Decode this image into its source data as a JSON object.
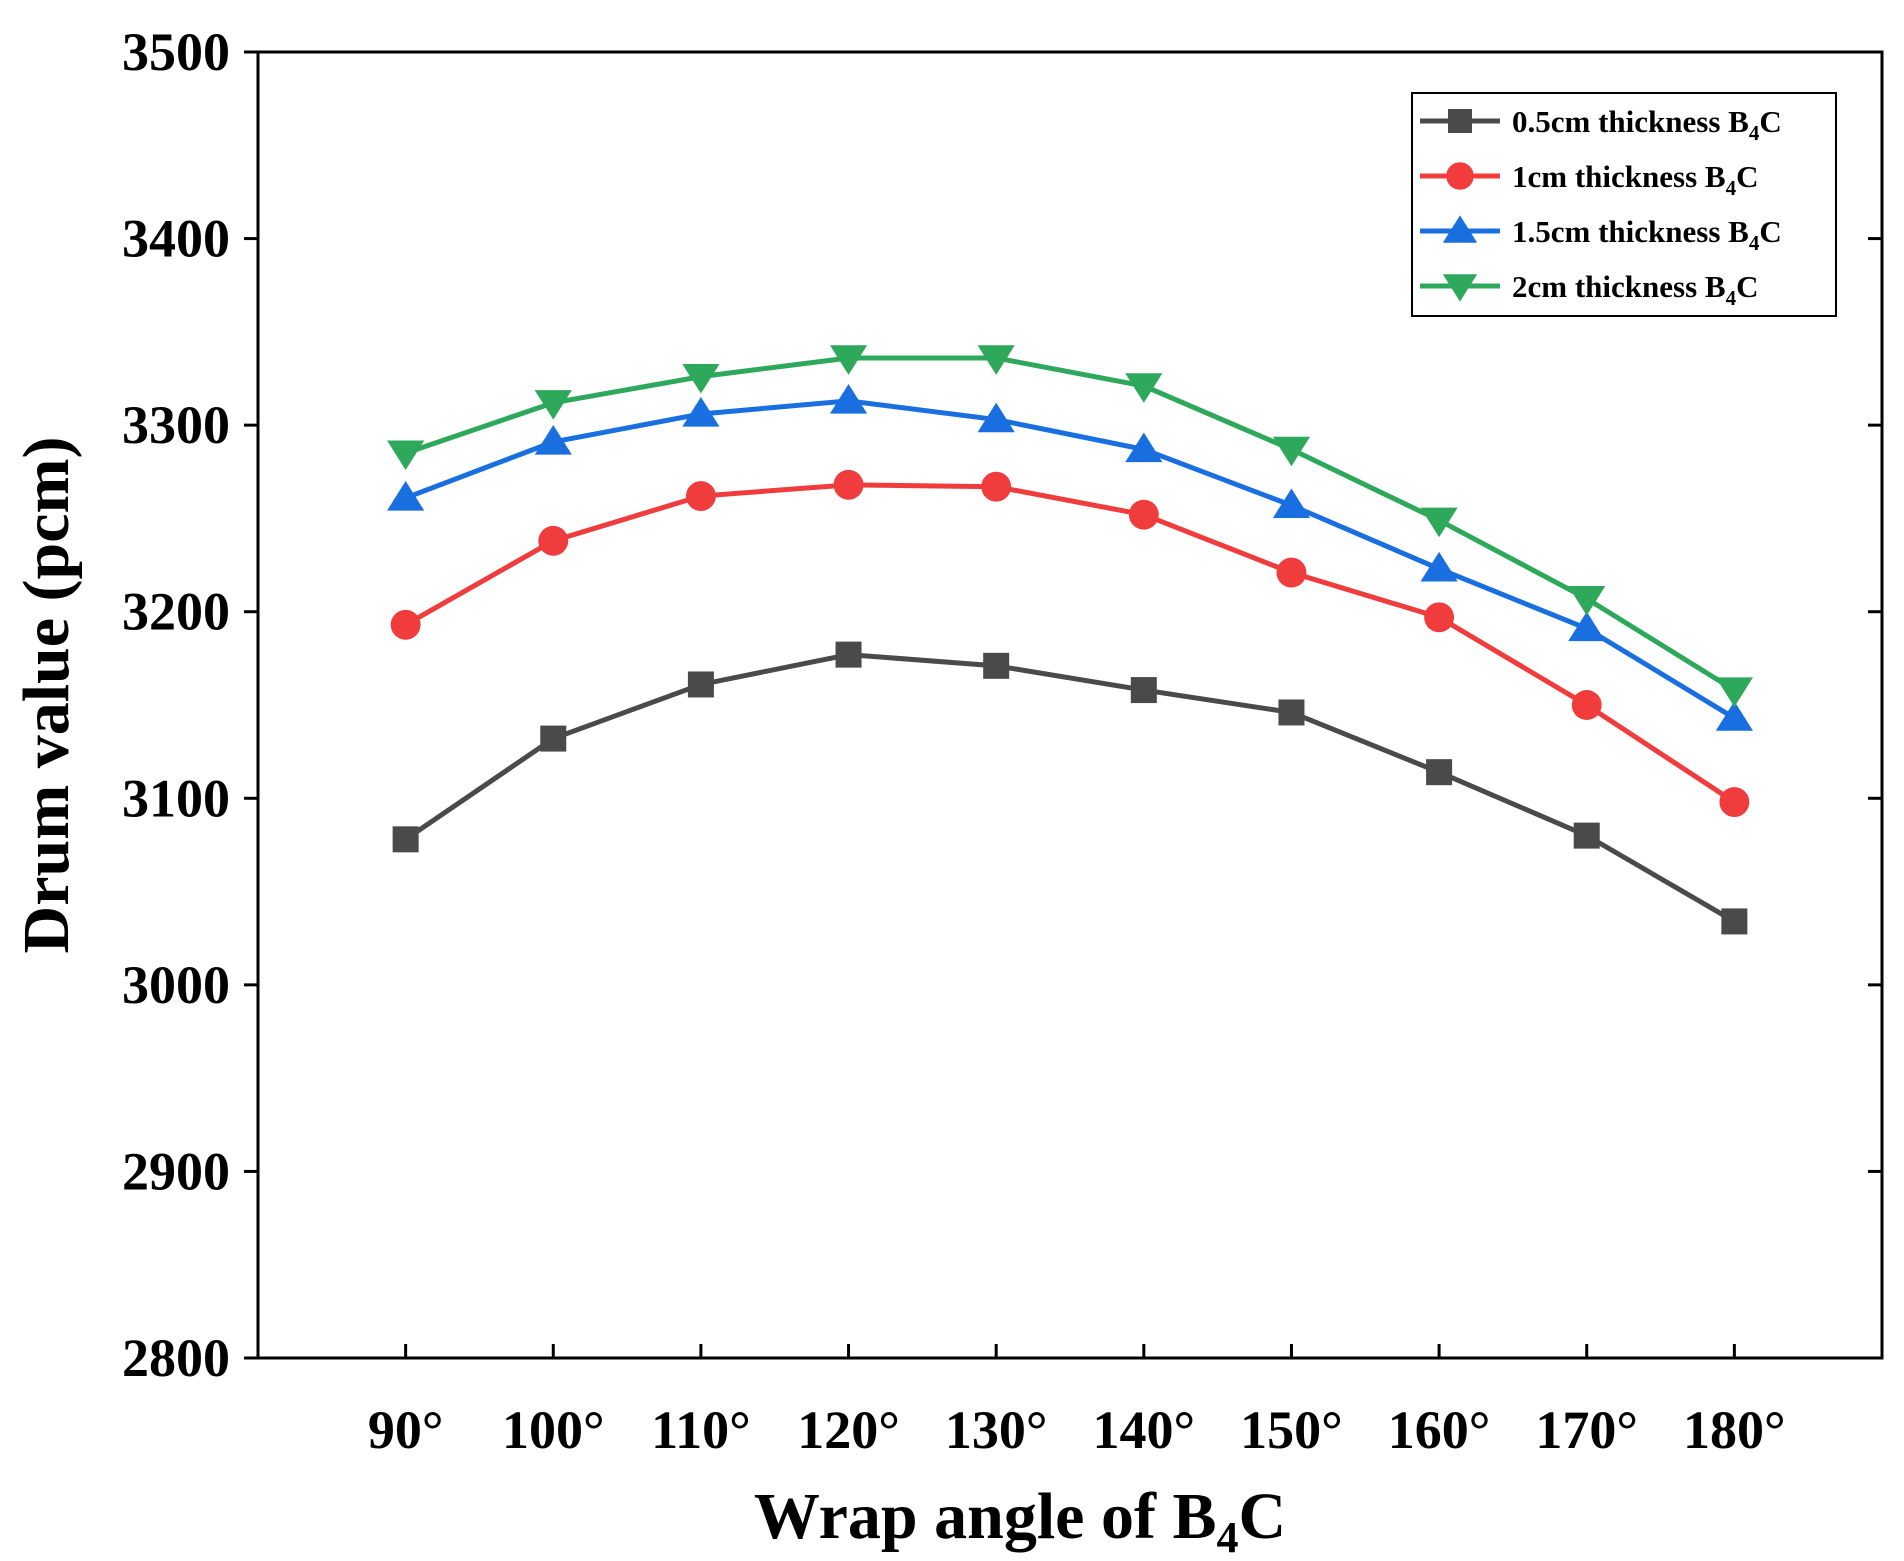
{
  "chart_data": {
    "type": "line",
    "title": "",
    "xlabel": "Wrap angle of B",
    "xlabel_sub": "4",
    "xlabel_tail": "C",
    "ylabel": "Drum value (pcm)",
    "ylim": [
      2800,
      3500
    ],
    "yticks": [
      2800,
      2900,
      3000,
      3100,
      3200,
      3300,
      3400,
      3500
    ],
    "x": [
      90,
      100,
      110,
      120,
      130,
      140,
      150,
      160,
      170,
      180
    ],
    "xlim": [
      80,
      190
    ],
    "categories": [
      "90°",
      "100°",
      "110°",
      "120°",
      "130°",
      "140°",
      "150°",
      "160°",
      "170°",
      "180°"
    ],
    "legend_position": "top-right",
    "grid": false,
    "series": [
      {
        "name": "0.5cm thickness B",
        "name_sub": "4",
        "name_tail": "C",
        "marker": "square",
        "color": "#4a4a4a",
        "values": [
          3078,
          3132,
          3161,
          3177,
          3171,
          3158,
          3146,
          3114,
          3080,
          3034
        ]
      },
      {
        "name": "1cm thickness B",
        "name_sub": "4",
        "name_tail": "C",
        "marker": "circle",
        "color": "#f03c3c",
        "values": [
          3193,
          3238,
          3262,
          3268,
          3267,
          3252,
          3221,
          3197,
          3150,
          3098
        ]
      },
      {
        "name": "1.5cm thickness B",
        "name_sub": "4",
        "name_tail": "C",
        "marker": "triangle-up",
        "color": "#1a6fe0",
        "values": [
          3261,
          3291,
          3306,
          3313,
          3303,
          3287,
          3257,
          3223,
          3191,
          3143
        ]
      },
      {
        "name": "2cm thickness B",
        "name_sub": "4",
        "name_tail": "C",
        "marker": "triangle-down",
        "color": "#2ea85a",
        "values": [
          3285,
          3312,
          3326,
          3336,
          3336,
          3321,
          3287,
          3249,
          3207,
          3158
        ]
      }
    ]
  }
}
